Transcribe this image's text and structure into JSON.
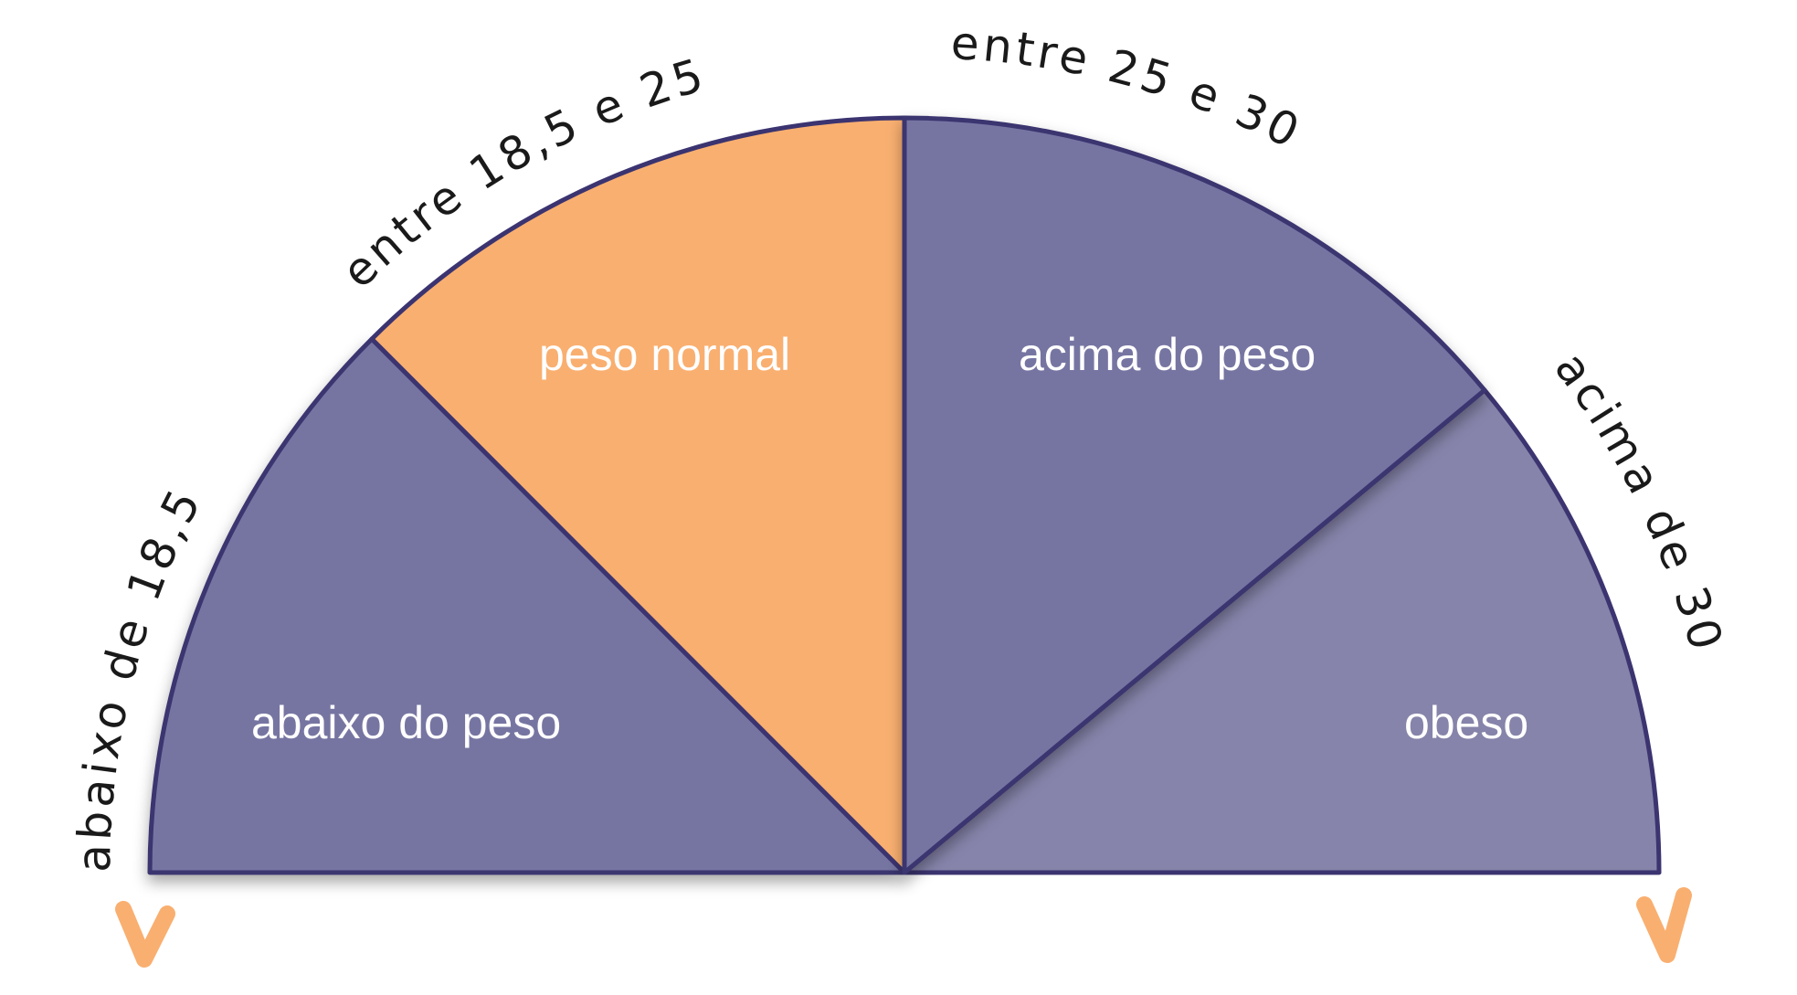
{
  "gauge": {
    "arc_labels": [
      "abaixo de 18,5",
      "entre 18,5 e 25",
      "entre 25 e 30",
      "acima de 30"
    ],
    "sectors": [
      {
        "label": "abaixo do peso",
        "color": "#7674a2"
      },
      {
        "label": "peso normal",
        "color": "#f9af70"
      },
      {
        "label": "acima do peso",
        "color": "#7674a2"
      },
      {
        "label": "obeso",
        "color": "#8684aa"
      }
    ],
    "outline_color": "#3b3470",
    "arrow_color": "#f9af70"
  }
}
